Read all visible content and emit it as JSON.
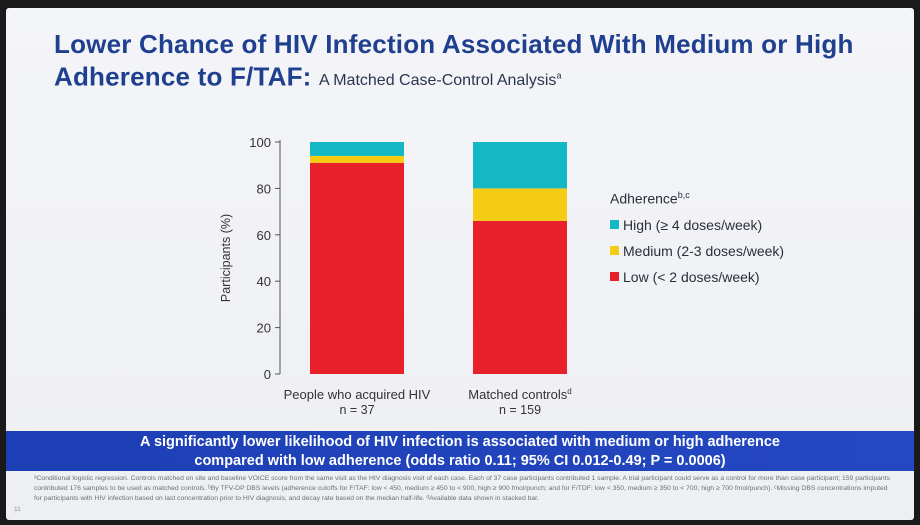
{
  "slide": {
    "title_main": "Lower Chance of HIV Infection Associated With Medium or High Adherence to F/TAF:",
    "title_sub": "A Matched Case-Control Analysis",
    "title_sub_sup": "a",
    "banner_line1": "A significantly lower likelihood of HIV infection is associated with medium or high adherence",
    "banner_line2": "compared with low adherence (odds ratio 0.11; 95% CI 0.012-0.49; P = 0.0006)",
    "footnote": "ᵃConditional logistic regression. Controls matched on site and baseline VOICE score from the same visit as the HIV diagnosis visit of each case. Each of 37 case participants contributed 1 sample. A trial participant could serve as a control for more than case participant; 159 participants contributed 176 samples to be used as matched controls. ᵇBy TFV-DP DBS levels (adherence cutoffs for F/TAF: low < 450, medium ≥ 450 to < 900, high ≥ 900 fmol/punch; and for F/TDF: low < 350, medium ≥ 350 to < 700, high ≥ 700 fmol/punch). ᶜMissing DBS concentrations imputed for participants with HIV infection based on last concentration prior to HIV diagnosis, and decay rate based on the median half-life. ᵈAvailable data shown in stacked bar.",
    "slide_number": "11"
  },
  "chart_data": {
    "type": "bar",
    "stacked": true,
    "categories": [
      "People who acquired HIV",
      "Matched controls"
    ],
    "category_sup": [
      "",
      "d"
    ],
    "category_n": [
      "n = 37",
      "n = 159"
    ],
    "ylabel": "Participants (%)",
    "ylim": [
      0,
      100
    ],
    "yticks": [
      0,
      20,
      40,
      60,
      80,
      100
    ],
    "legend_title": "Adherence",
    "legend_title_sup": "b,c",
    "legend_position": "right",
    "series": [
      {
        "name": "Low (< 2 doses/week)",
        "values": [
          91,
          66
        ],
        "color": "#e8202a"
      },
      {
        "name": "Medium (2-3 doses/week)",
        "values": [
          3,
          14
        ],
        "color": "#f5cc14"
      },
      {
        "name": "High (≥ 4 doses/week)",
        "values": [
          6,
          20
        ],
        "color": "#14b8c4"
      }
    ]
  }
}
